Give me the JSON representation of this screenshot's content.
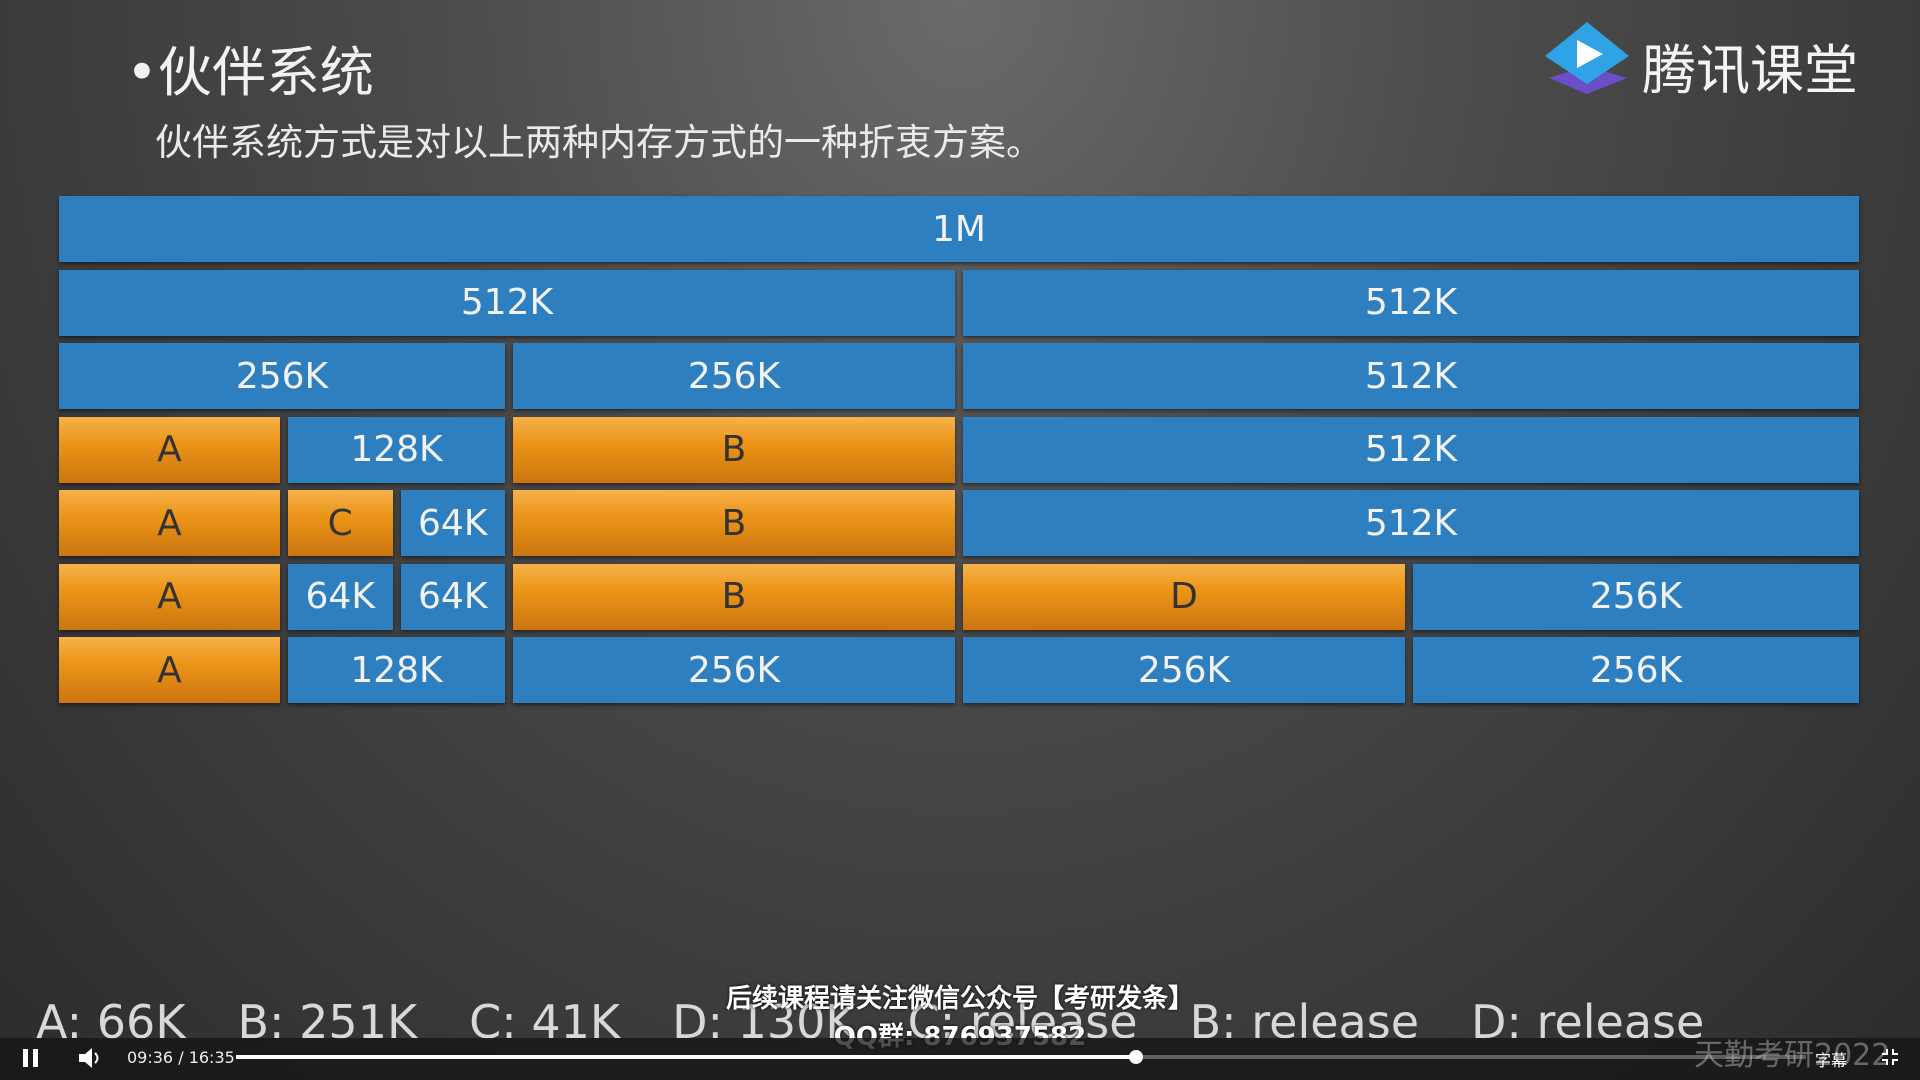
{
  "slide": {
    "bullet": "•",
    "title": "伙伴系统",
    "subtitle": "伙伴系统方式是对以上两种内存方式的一种折衷方案。",
    "logo_text": "腾讯课堂",
    "rows": [
      [
        {
          "label": "1M",
          "color": "#2e7fc0"
        }
      ],
      [
        {
          "label": "512K",
          "color": "#2e7fc0"
        },
        {
          "label": "512K",
          "color": "#2e7fc0"
        }
      ],
      [
        {
          "label": "256K",
          "color": "#2e7fc0"
        },
        {
          "label": "256K",
          "color": "#2e7fc0"
        },
        {
          "label": "512K",
          "color": "#2e7fc0"
        }
      ],
      [
        {
          "label": "A",
          "color": "#ec9418"
        },
        {
          "label": "128K",
          "color": "#2e7fc0"
        },
        {
          "label": "B",
          "color": "#ec9418"
        },
        {
          "label": "512K",
          "color": "#2e7fc0"
        }
      ],
      [
        {
          "label": "A",
          "color": "#ec9418"
        },
        {
          "label": "C",
          "color": "#ec9418"
        },
        {
          "label": "64K",
          "color": "#2e7fc0"
        },
        {
          "label": "B",
          "color": "#ec9418"
        },
        {
          "label": "512K",
          "color": "#2e7fc0"
        }
      ],
      [
        {
          "label": "A",
          "color": "#ec9418"
        },
        {
          "label": "64K",
          "color": "#2e7fc0"
        },
        {
          "label": "64K",
          "color": "#2e7fc0"
        },
        {
          "label": "B",
          "color": "#ec9418"
        },
        {
          "label": "D",
          "color": "#ec9418"
        },
        {
          "label": "256K",
          "color": "#2e7fc0"
        }
      ],
      [
        {
          "label": "A",
          "color": "#ec9418"
        },
        {
          "label": "128K",
          "color": "#2e7fc0"
        },
        {
          "label": "256K",
          "color": "#2e7fc0"
        },
        {
          "label": "256K",
          "color": "#2e7fc0"
        },
        {
          "label": "256K",
          "color": "#2e7fc0"
        }
      ]
    ],
    "sequence": [
      "A: 66K",
      "B: 251K",
      "C: 41K",
      "D: 130K",
      "C: release",
      "B: release",
      "D: release"
    ]
  },
  "overlay": {
    "notice": "后续课程请关注微信公众号【考研发条】",
    "qq": "QQ群: 876937582",
    "watermark": "天勤考研2022"
  },
  "player": {
    "current_time": "09:36",
    "time_separator": "/",
    "duration": "16:35",
    "subtitles_button": "字幕"
  }
}
